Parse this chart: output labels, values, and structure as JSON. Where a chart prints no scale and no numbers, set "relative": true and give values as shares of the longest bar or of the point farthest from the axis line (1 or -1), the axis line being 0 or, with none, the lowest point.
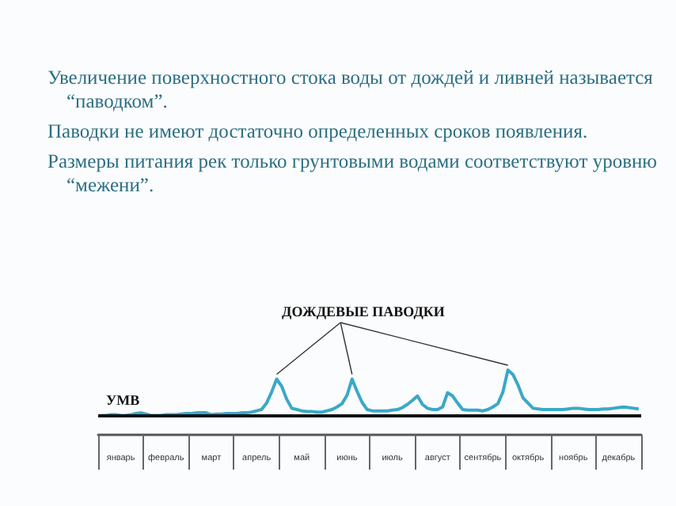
{
  "chart_data": {
    "type": "line",
    "relative": true,
    "categories": [
      null,
      null,
      null,
      null,
      "январь",
      null,
      null,
      null,
      null,
      null,
      null,
      null,
      null,
      "февраль",
      null,
      null,
      null,
      null,
      null,
      null,
      null,
      null,
      "март",
      null,
      null,
      null,
      null,
      null,
      null,
      null,
      null,
      "апрель",
      null,
      null,
      null,
      null,
      null,
      null,
      null,
      null,
      "май",
      null,
      null,
      null,
      null,
      null,
      null,
      null,
      null,
      "июнь",
      null,
      null,
      null,
      null,
      null,
      null,
      null,
      null,
      "июль",
      null,
      null,
      null,
      null,
      null,
      null,
      null,
      null,
      "август",
      null,
      null,
      null,
      null,
      null,
      null,
      null,
      null,
      "сентябрь",
      null,
      null,
      null,
      null,
      null,
      null,
      null,
      null,
      "октябрь",
      null,
      null,
      null,
      null,
      null,
      null,
      null,
      null,
      "ноябрь",
      null,
      null,
      null,
      null,
      null,
      null,
      null,
      null,
      "декабрь",
      null,
      null,
      null,
      null
    ],
    "annotations": [
      "Увеличение поверхностного стока воды от дождей и ливней называется “паводком”.",
      "Паводки не имеют достаточно определенных сроков появления.",
      "Размеры питания рек  только грунтовыми водами соответствуют  уровню “межени”.",
      "ДОЖДЕВЫЕ ПАВОДКИ"
    ],
    "ref_lines": [
      {
        "axis": "y",
        "value": 0.3,
        "label": "УМВ",
        "color": "#111111"
      }
    ],
    "series": [
      {
        "color": "#3aa8c8",
        "values": [
          0.3,
          0.3,
          0.31,
          0.31,
          0.3,
          0.3,
          0.31,
          0.33,
          0.34,
          0.32,
          0.3,
          0.3,
          0.3,
          0.31,
          0.31,
          0.31,
          0.32,
          0.33,
          0.33,
          0.34,
          0.34,
          0.34,
          0.31,
          0.32,
          0.32,
          0.33,
          0.33,
          0.33,
          0.34,
          0.34,
          0.35,
          0.37,
          0.39,
          0.49,
          0.66,
          0.86,
          0.75,
          0.55,
          0.41,
          0.39,
          0.37,
          0.36,
          0.36,
          0.35,
          0.35,
          0.37,
          0.39,
          0.43,
          0.48,
          0.61,
          0.86,
          0.67,
          0.5,
          0.39,
          0.37,
          0.37,
          0.37,
          0.37,
          0.38,
          0.39,
          0.42,
          0.47,
          0.53,
          0.6,
          0.47,
          0.41,
          0.39,
          0.39,
          0.43,
          0.65,
          0.6,
          0.49,
          0.39,
          0.38,
          0.38,
          0.38,
          0.37,
          0.39,
          0.43,
          0.48,
          0.66,
          1.0,
          0.93,
          0.77,
          0.57,
          0.49,
          0.41,
          0.4,
          0.39,
          0.39,
          0.39,
          0.39,
          0.39,
          0.4,
          0.41,
          0.41,
          0.4,
          0.39,
          0.39,
          0.39,
          0.4,
          0.4,
          0.41,
          0.42,
          0.43,
          0.42,
          0.41,
          0.4
        ]
      }
    ]
  }
}
